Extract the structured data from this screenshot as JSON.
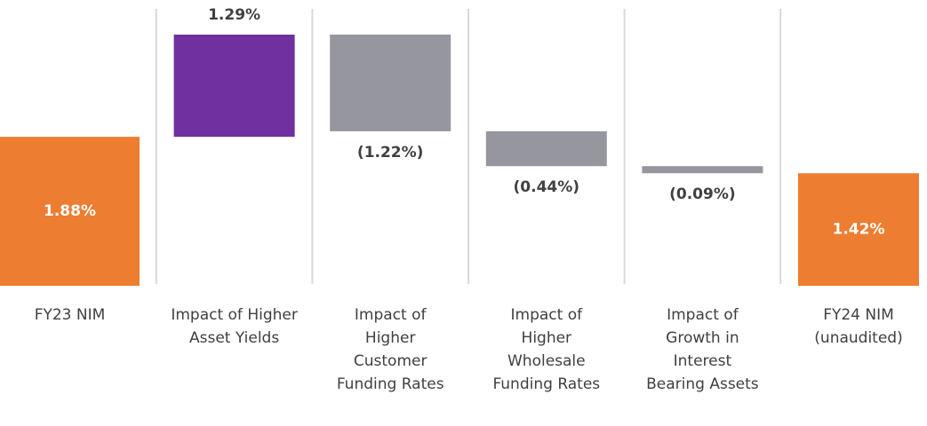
{
  "chart_data": {
    "type": "waterfall",
    "categories": [
      "FY23 NIM",
      "Impact of Higher Asset Yields",
      "Impact of Higher Customer Funding Rates",
      "Impact of Higher Wholesale Funding Rates",
      "Impact of Growth in Interest Bearing Assets",
      "FY24 NIM (unaudited)"
    ],
    "values": [
      1.88,
      1.29,
      -1.22,
      -0.44,
      -0.09,
      1.42
    ],
    "value_labels": [
      "1.88%",
      "1.29%",
      "(1.22%)",
      "(0.44%)",
      "(0.09%)",
      "1.42%"
    ],
    "measure": [
      "absolute",
      "relative",
      "relative",
      "relative",
      "relative",
      "total"
    ],
    "colors": [
      "#ED7D31",
      "#7030A0",
      "#96969E",
      "#96969E",
      "#96969E",
      "#ED7D31"
    ]
  }
}
